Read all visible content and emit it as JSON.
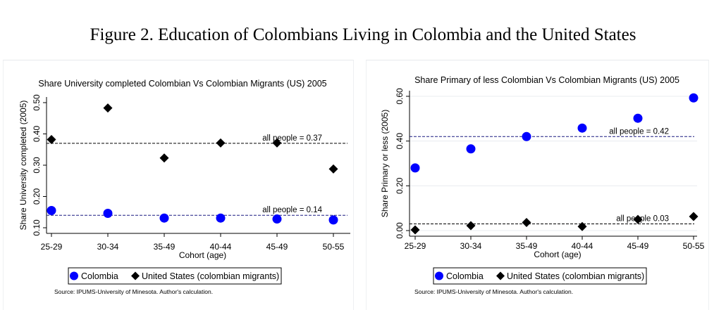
{
  "figure_title": "Figure 2. Education of Colombians Living in Colombia and the United States",
  "chart_data": [
    {
      "type": "scatter",
      "title": "Share University completed Colombian Vs Colombian Migrants (US) 2005",
      "xlabel": "Cohort (age)",
      "ylabel": "Share University completed (2005)",
      "categories": [
        "25-29",
        "30-34",
        "35-49",
        "40-44",
        "45-49",
        "50-55"
      ],
      "ylim": [
        0.1,
        0.5
      ],
      "yticks": [
        0.1,
        0.2,
        0.3,
        0.4,
        0.5
      ],
      "ytick_labels": [
        "0.10",
        "0.20",
        "0.30",
        "0.40",
        "0.50"
      ],
      "grid": false,
      "series": [
        {
          "name": "Colombia",
          "marker": "circle",
          "color": "#0000ff",
          "values": [
            0.155,
            0.146,
            0.131,
            0.131,
            0.128,
            0.125
          ]
        },
        {
          "name": "United States (colombian migrants)",
          "marker": "diamond",
          "color": "#000000",
          "values": [
            0.382,
            0.483,
            0.323,
            0.371,
            0.371,
            0.288
          ]
        }
      ],
      "reference_lines": [
        {
          "value": 0.37,
          "label": "all people = 0.37",
          "color": "#000000"
        },
        {
          "value": 0.14,
          "label": "all people = 0.14",
          "color": "#1a1a80"
        }
      ],
      "legend": {
        "position": "bottom",
        "entries": [
          "Colombia",
          "United States (colombian migrants)"
        ]
      },
      "note": "Source: IPUMS-University of Minesota. Author's calculation."
    },
    {
      "type": "scatter",
      "title": "Share Primary of less Colombian Vs Colombian Migrants (US) 2005",
      "xlabel": "Cohort (age)",
      "ylabel": "Share Primary or less (2005)",
      "categories": [
        "25-29",
        "30-34",
        "35-49",
        "40-44",
        "45-49",
        "50-55"
      ],
      "ylim": [
        0.0,
        0.6
      ],
      "yticks": [
        0.0,
        0.2,
        0.4,
        0.6
      ],
      "ytick_labels": [
        "0.00",
        "0.20",
        "0.40",
        "0.60"
      ],
      "grid": true,
      "series": [
        {
          "name": "Colombia",
          "marker": "circle",
          "color": "#0000ff",
          "values": [
            0.28,
            0.365,
            0.42,
            0.458,
            0.502,
            0.593
          ]
        },
        {
          "name": "United States (colombian migrants)",
          "marker": "diamond",
          "color": "#000000",
          "values": [
            0.003,
            0.022,
            0.036,
            0.018,
            0.05,
            0.063
          ]
        }
      ],
      "reference_lines": [
        {
          "value": 0.42,
          "label": "all people = 0.42",
          "color": "#1a1a80"
        },
        {
          "value": 0.03,
          "label": "all people 0.03",
          "color": "#000000"
        }
      ],
      "legend": {
        "position": "bottom",
        "entries": [
          "Colombia",
          "United States (colombian migrants)"
        ]
      },
      "note": "Source: IPUMS-University of Minesota. Author's calculation."
    }
  ]
}
